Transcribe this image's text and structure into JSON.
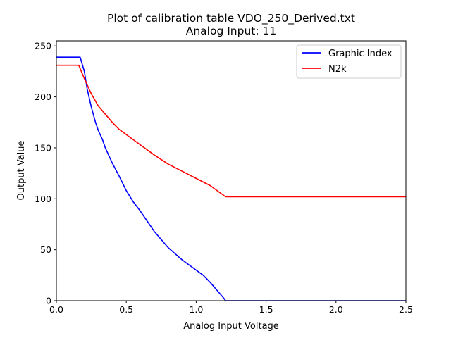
{
  "chart_data": {
    "type": "line",
    "title": "Plot of calibration table VDO_250_Derived.txt",
    "subtitle": "Analog Input: 11",
    "xlabel": "Analog Input Voltage",
    "ylabel": "Output Value",
    "xlim": [
      0,
      2.5
    ],
    "ylim": [
      0,
      255
    ],
    "xticks": [
      0.0,
      0.5,
      1.0,
      1.5,
      2.0,
      2.5
    ],
    "xtick_labels": [
      "0.0",
      "0.5",
      "1.0",
      "1.5",
      "2.0",
      "2.5"
    ],
    "yticks": [
      0,
      50,
      100,
      150,
      200,
      250
    ],
    "ytick_labels": [
      "0",
      "50",
      "100",
      "150",
      "200",
      "250"
    ],
    "grid": false,
    "legend_position": "top-right",
    "series": [
      {
        "name": "Graphic Index",
        "color": "#0000ff",
        "x": [
          0,
          0.17,
          0.2,
          0.22,
          0.25,
          0.28,
          0.3,
          0.33,
          0.35,
          0.4,
          0.45,
          0.5,
          0.55,
          0.6,
          0.65,
          0.7,
          0.75,
          0.8,
          0.85,
          0.9,
          0.95,
          1.0,
          1.05,
          1.1,
          1.15,
          1.2,
          1.21,
          2.5
        ],
        "y": [
          239,
          239,
          225,
          208,
          190,
          175,
          167,
          158,
          150,
          135,
          122,
          108,
          97,
          88,
          78,
          68,
          60,
          52,
          46,
          40,
          35,
          30,
          25,
          18,
          10,
          2,
          0,
          0
        ]
      },
      {
        "name": "N2k",
        "color": "#ff0000",
        "x": [
          0,
          0.16,
          0.2,
          0.25,
          0.3,
          0.35,
          0.4,
          0.45,
          0.5,
          0.6,
          0.7,
          0.8,
          0.9,
          1.0,
          1.1,
          1.15,
          1.21,
          2.5
        ],
        "y": [
          231,
          231,
          218,
          203,
          191,
          183,
          175,
          168,
          163,
          153,
          143,
          134,
          127,
          120,
          113,
          108,
          102,
          102
        ]
      }
    ]
  }
}
